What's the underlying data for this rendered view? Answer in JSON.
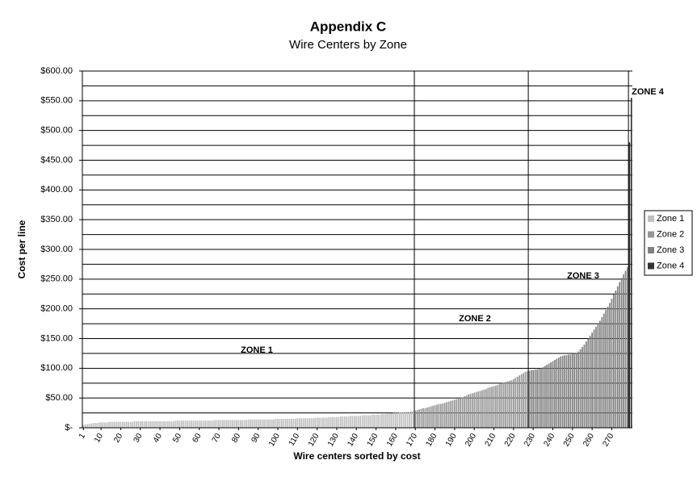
{
  "chart_data": {
    "type": "bar",
    "title": "Appendix C",
    "subtitle": "Wire Centers by Zone",
    "x_label": "Wire centers sorted by cost",
    "y_label": "Cost per line",
    "xlim": [
      0.5,
      280.5
    ],
    "xticks": [
      1,
      10,
      20,
      30,
      40,
      50,
      60,
      70,
      80,
      90,
      100,
      110,
      120,
      130,
      140,
      150,
      160,
      170,
      180,
      190,
      200,
      210,
      220,
      230,
      240,
      250,
      260,
      270
    ],
    "ylim": [
      0,
      600
    ],
    "yticks": [
      {
        "value": 0,
        "label": "$-"
      },
      {
        "value": 50,
        "label": "$50.00"
      },
      {
        "value": 100,
        "label": "$100.00"
      },
      {
        "value": 150,
        "label": "$150.00"
      },
      {
        "value": 200,
        "label": "$200.00"
      },
      {
        "value": 250,
        "label": "$250.00"
      },
      {
        "value": 300,
        "label": "$300.00"
      },
      {
        "value": 350,
        "label": "$350.00"
      },
      {
        "value": 400,
        "label": "$400.00"
      },
      {
        "value": 450,
        "label": "$450.00"
      },
      {
        "value": 500,
        "label": "$500.00"
      },
      {
        "value": 550,
        "label": "$550.00"
      },
      {
        "value": 600,
        "label": "$600.00"
      }
    ],
    "minor_yticks": [
      25,
      75,
      125,
      175,
      225,
      275,
      325,
      375,
      425,
      475,
      525,
      575
    ],
    "grid": true,
    "legend": "right",
    "zone_boundaries": [
      169.5,
      227.5,
      278.5
    ],
    "annotations": [
      "ZONE 1",
      "ZONE 2",
      "ZONE 3",
      "ZONE 4"
    ],
    "series": [
      {
        "name": "Zone 1",
        "color": "#c0c0c0",
        "x": [
          1,
          2,
          3,
          4,
          5,
          6,
          7,
          8,
          9,
          10,
          11,
          12,
          13,
          14,
          15,
          16,
          17,
          18,
          19,
          20,
          21,
          22,
          23,
          24,
          25,
          26,
          27,
          28,
          29,
          30,
          31,
          32,
          33,
          34,
          35,
          36,
          37,
          38,
          39,
          40,
          41,
          42,
          43,
          44,
          45,
          46,
          47,
          48,
          49,
          50,
          51,
          52,
          53,
          54,
          55,
          56,
          57,
          58,
          59,
          60,
          61,
          62,
          63,
          64,
          65,
          66,
          67,
          68,
          69,
          70,
          71,
          72,
          73,
          74,
          75,
          76,
          77,
          78,
          79,
          80,
          81,
          82,
          83,
          84,
          85,
          86,
          87,
          88,
          89,
          90,
          91,
          92,
          93,
          94,
          95,
          96,
          97,
          98,
          99,
          100,
          101,
          102,
          103,
          104,
          105,
          106,
          107,
          108,
          109,
          110,
          111,
          112,
          113,
          114,
          115,
          116,
          117,
          118,
          119,
          120,
          121,
          122,
          123,
          124,
          125,
          126,
          127,
          128,
          129,
          130,
          131,
          132,
          133,
          134,
          135,
          136,
          137,
          138,
          139,
          140,
          141,
          142,
          143,
          144,
          145,
          146,
          147,
          148,
          149,
          150,
          151,
          152,
          153,
          154,
          155,
          156,
          157,
          158,
          159,
          160,
          161,
          162,
          163,
          164,
          165,
          166,
          167,
          168,
          169
        ],
        "values": [
          5,
          6,
          6,
          7,
          7,
          8,
          8,
          8,
          9,
          9,
          9,
          9,
          9,
          10,
          10,
          10,
          10,
          10,
          10,
          10,
          10,
          10,
          10,
          10,
          10,
          10,
          11,
          11,
          11,
          11,
          11,
          11,
          11,
          11,
          11,
          11,
          11,
          11,
          11,
          11,
          11,
          11,
          11,
          11,
          11,
          11,
          11,
          12,
          12,
          12,
          12,
          12,
          12,
          12,
          12,
          12,
          12,
          12,
          12,
          12,
          12,
          12,
          12,
          12,
          12,
          12,
          12,
          13,
          13,
          13,
          13,
          13,
          13,
          13,
          13,
          13,
          13,
          13,
          13,
          13,
          13,
          13,
          13,
          13,
          14,
          14,
          14,
          14,
          14,
          14,
          14,
          14,
          14,
          14,
          14,
          14,
          14,
          14,
          15,
          15,
          15,
          15,
          15,
          15,
          15,
          15,
          15,
          15,
          15,
          16,
          16,
          16,
          16,
          16,
          16,
          16,
          16,
          16,
          17,
          17,
          17,
          17,
          17,
          17,
          17,
          18,
          18,
          18,
          18,
          18,
          18,
          19,
          19,
          19,
          19,
          19,
          20,
          20,
          20,
          20,
          20,
          20,
          21,
          21,
          21,
          21,
          21,
          22,
          22,
          22,
          22,
          22,
          23,
          23,
          23,
          24,
          24,
          24,
          25,
          25,
          25,
          26,
          26,
          26,
          27,
          27,
          27,
          28,
          28
        ]
      },
      {
        "name": "Zone 2",
        "color": "#969696",
        "x": [
          170,
          171,
          172,
          173,
          174,
          175,
          176,
          177,
          178,
          179,
          180,
          181,
          182,
          183,
          184,
          185,
          186,
          187,
          188,
          189,
          190,
          191,
          192,
          193,
          194,
          195,
          196,
          197,
          198,
          199,
          200,
          201,
          202,
          203,
          204,
          205,
          206,
          207,
          208,
          209,
          210,
          211,
          212,
          213,
          214,
          215,
          216,
          217,
          218,
          219,
          220,
          221,
          222,
          223,
          224,
          225,
          226,
          227
        ],
        "values": [
          29,
          30,
          31,
          32,
          33,
          33,
          34,
          35,
          36,
          37,
          38,
          39,
          40,
          40,
          41,
          42,
          43,
          44,
          45,
          46,
          47,
          48,
          49,
          50,
          51,
          53,
          54,
          56,
          57,
          58,
          59,
          60,
          61,
          62,
          63,
          64,
          65,
          67,
          68,
          69,
          70,
          71,
          72,
          74,
          75,
          76,
          77,
          78,
          79,
          80,
          82,
          84,
          86,
          88,
          90,
          92,
          94,
          95
        ]
      },
      {
        "name": "Zone 3",
        "color": "#808080",
        "x": [
          228,
          229,
          230,
          231,
          232,
          233,
          234,
          235,
          236,
          237,
          238,
          239,
          240,
          241,
          242,
          243,
          244,
          245,
          246,
          247,
          248,
          249,
          250,
          251,
          252,
          253,
          254,
          255,
          256,
          257,
          258,
          259,
          260,
          261,
          262,
          263,
          264,
          265,
          266,
          267,
          268,
          269,
          270,
          271,
          272,
          273,
          274,
          275,
          276,
          277,
          278
        ],
        "values": [
          96,
          97,
          97,
          98,
          98,
          99,
          100,
          102,
          104,
          106,
          108,
          110,
          112,
          114,
          116,
          118,
          120,
          121,
          122,
          122,
          123,
          123,
          124,
          125,
          126,
          128,
          132,
          136,
          140,
          145,
          150,
          155,
          160,
          165,
          170,
          175,
          180,
          186,
          192,
          198,
          204,
          210,
          217,
          224,
          231,
          238,
          245,
          252,
          258,
          264,
          270
        ]
      },
      {
        "name": "Zone 4",
        "color": "#333333",
        "x": [
          279,
          280
        ],
        "values": [
          480,
          555
        ]
      }
    ]
  }
}
